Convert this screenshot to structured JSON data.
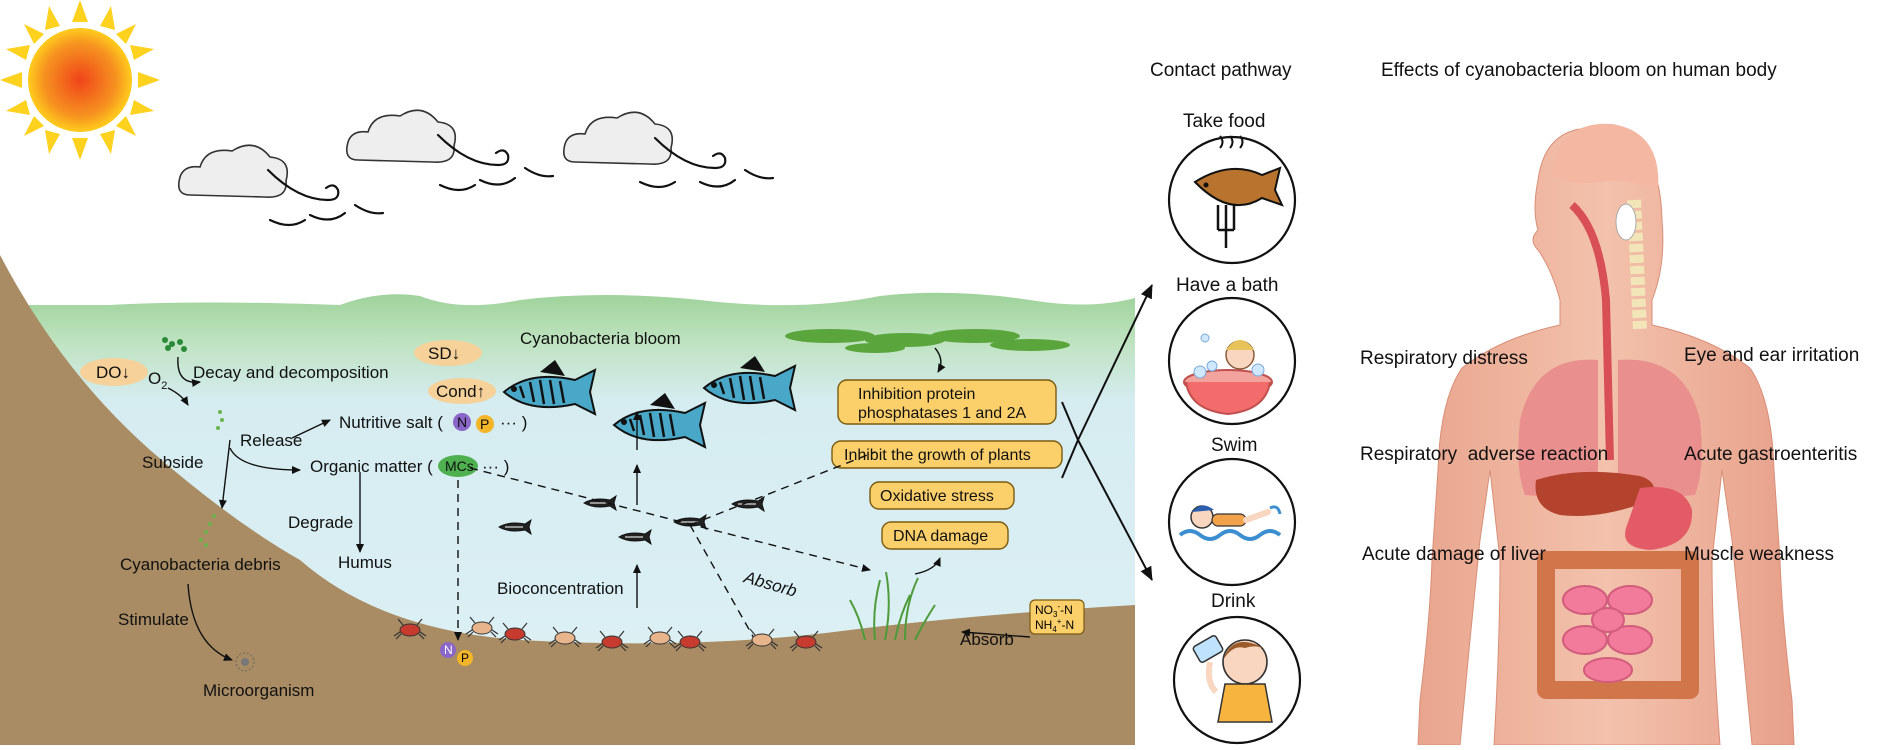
{
  "lake": {
    "labels": {
      "do": "DO↓",
      "o2": "O",
      "o2_sub": "2",
      "decay": "Decay and decomposition",
      "sd": "SD↓",
      "cond": "Cond↑",
      "bloom": "Cyanobacteria bloom",
      "release": "Release",
      "nutritive_salt": "Nutritive salt (",
      "nut_n": "N",
      "nut_p": "P",
      "nut_more": "···  )",
      "subside": "Subside",
      "organic": "Organic matter (",
      "mcs": "MCs",
      "organic_more": "···  )",
      "degrade": "Degrade",
      "humus": "Humus",
      "debris": "Cyanobacteria debris",
      "stimulate": "Stimulate",
      "microorganism": "Microorganism",
      "bioconcentration": "Bioconcentration",
      "absorb_diag": "Absorb",
      "absorb_bottom": "Absorb",
      "no3": "NO",
      "no3_sub": "3",
      "no3_sup": "-",
      "no3_n": "-N",
      "nh4": "NH",
      "nh4_sub": "4",
      "nh4_sup": "+",
      "nh4_n": "-N",
      "sed_n": "N",
      "sed_p": "P"
    },
    "effect_boxes": [
      {
        "line1": "Inhibition protein",
        "line2": "phosphatases 1 and 2A"
      },
      {
        "line1": "Inhibit the growth of plants"
      },
      {
        "line1": "Oxidative stress"
      },
      {
        "line1": "DNA damage"
      }
    ]
  },
  "pathway": {
    "title": "Contact pathway",
    "items": [
      {
        "label": "Take food",
        "icon": "fish-on-fork-icon"
      },
      {
        "label": "Have a bath",
        "icon": "baby-bath-icon"
      },
      {
        "label": "Swim",
        "icon": "swimmer-icon"
      },
      {
        "label": "Drink",
        "icon": "drinking-child-icon"
      }
    ]
  },
  "human": {
    "title": "Effects of cyanobacteria bloom on human body",
    "effects_left": [
      "Respiratory distress",
      "Respiratory  adverse reaction",
      "Acute damage of liver"
    ],
    "effects_right": [
      "Eye and ear irritation",
      "Acute gastroenteritis",
      "Muscle weakness"
    ]
  },
  "colors": {
    "sky": "#ffffff",
    "water_surface": "#a9d8a2",
    "water_deep": "#d8eef3",
    "soil": "#a98c63",
    "box_fill": "#fbd06a",
    "box_stroke": "#7a5a10",
    "fish_body": "#49a7c8",
    "sun_core": "#f26a1b",
    "sun_ray": "#ffd21f"
  }
}
